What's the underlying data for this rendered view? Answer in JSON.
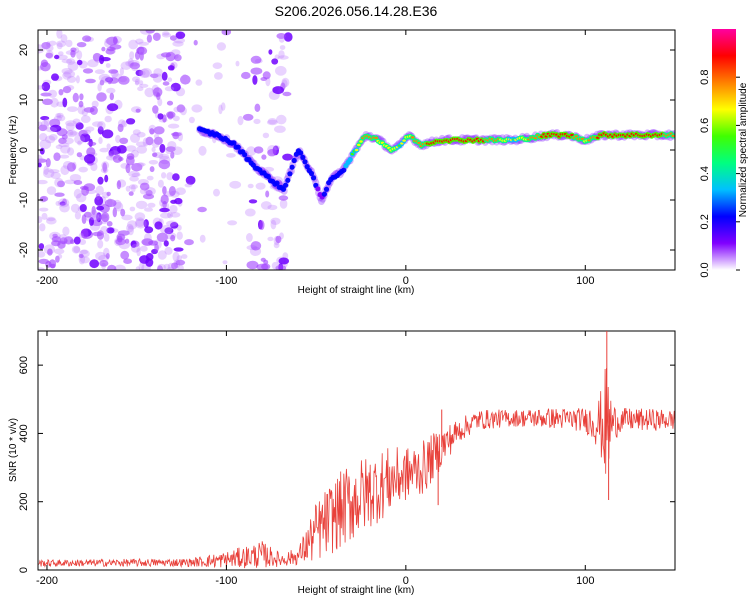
{
  "figure": {
    "title": "S206.2026.056.14.28.E36"
  },
  "chart_data": [
    {
      "type": "heatmap",
      "name": "spectrogram",
      "title": "S206.2026.056.14.28.E36",
      "xlabel": "Height of straight line (km)",
      "ylabel": "Frequency (Hz)",
      "xlim": [
        -205,
        150
      ],
      "ylim": [
        -24,
        24
      ],
      "xticks": [
        -200,
        -100,
        0,
        100
      ],
      "yticks": [
        -20,
        -10,
        0,
        10,
        20
      ],
      "colorbar": {
        "label": "Normalized spectral amplitude",
        "range": [
          0,
          1
        ],
        "ticks": [
          "0.0",
          "0.2",
          "0.4",
          "0.6",
          "0.8"
        ],
        "colors": [
          "#ffffff",
          "#8000ff",
          "#0000ff",
          "#00c0ff",
          "#00ff80",
          "#40ff00",
          "#ffff00",
          "#ff8000",
          "#ff0000",
          "#ff00a0"
        ]
      },
      "ridge": {
        "description": "dominant frequency track",
        "x": [
          -115,
          -105,
          -95,
          -85,
          -75,
          -68,
          -60,
          -52,
          -47,
          -42,
          -35,
          -28,
          -22,
          -15,
          -8,
          -3,
          2,
          8,
          20,
          40,
          60,
          80,
          90,
          100,
          110,
          130,
          150
        ],
        "y": [
          4,
          3,
          1,
          -3,
          -6,
          -8,
          0,
          -5,
          -10,
          -6,
          -4,
          0,
          3,
          2,
          0,
          1,
          3,
          1,
          2,
          2,
          2,
          3,
          3,
          2,
          3,
          3,
          3
        ],
        "amplitude": [
          0.3,
          0.35,
          0.35,
          0.35,
          0.3,
          0.3,
          0.3,
          0.3,
          0.25,
          0.35,
          0.45,
          0.6,
          0.8,
          0.7,
          0.7,
          0.6,
          0.7,
          0.8,
          0.9,
          0.9,
          0.6,
          0.9,
          0.9,
          0.7,
          0.9,
          0.9,
          0.8
        ]
      },
      "noise_region_x": [
        -205,
        -65
      ]
    },
    {
      "type": "line",
      "name": "snr",
      "xlabel": "Height of straight line (km)",
      "ylabel": "SNR (10 * v/v)",
      "xlim": [
        -205,
        150
      ],
      "ylim": [
        0,
        700
      ],
      "xticks": [
        -200,
        -100,
        0,
        100
      ],
      "yticks": [
        0,
        200,
        400,
        600
      ],
      "color": "#e8403a",
      "envelope": {
        "x": [
          -205,
          -120,
          -100,
          -80,
          -70,
          -60,
          -50,
          -40,
          -30,
          -20,
          -10,
          0,
          10,
          20,
          30,
          40,
          60,
          80,
          100,
          108,
          112,
          115,
          120,
          150
        ],
        "mean": [
          20,
          22,
          30,
          45,
          30,
          40,
          110,
          160,
          200,
          230,
          260,
          280,
          300,
          360,
          410,
          440,
          445,
          445,
          440,
          430,
          420,
          430,
          440,
          440
        ],
        "spread": [
          10,
          12,
          25,
          40,
          20,
          25,
          90,
          110,
          120,
          110,
          100,
          80,
          80,
          60,
          35,
          30,
          25,
          30,
          35,
          80,
          200,
          60,
          35,
          30
        ]
      },
      "spikes": [
        {
          "x": 112,
          "value": 700
        },
        {
          "x": 113,
          "value": 205
        },
        {
          "x": 20,
          "value": 470
        },
        {
          "x": 18,
          "value": 190
        }
      ]
    }
  ]
}
